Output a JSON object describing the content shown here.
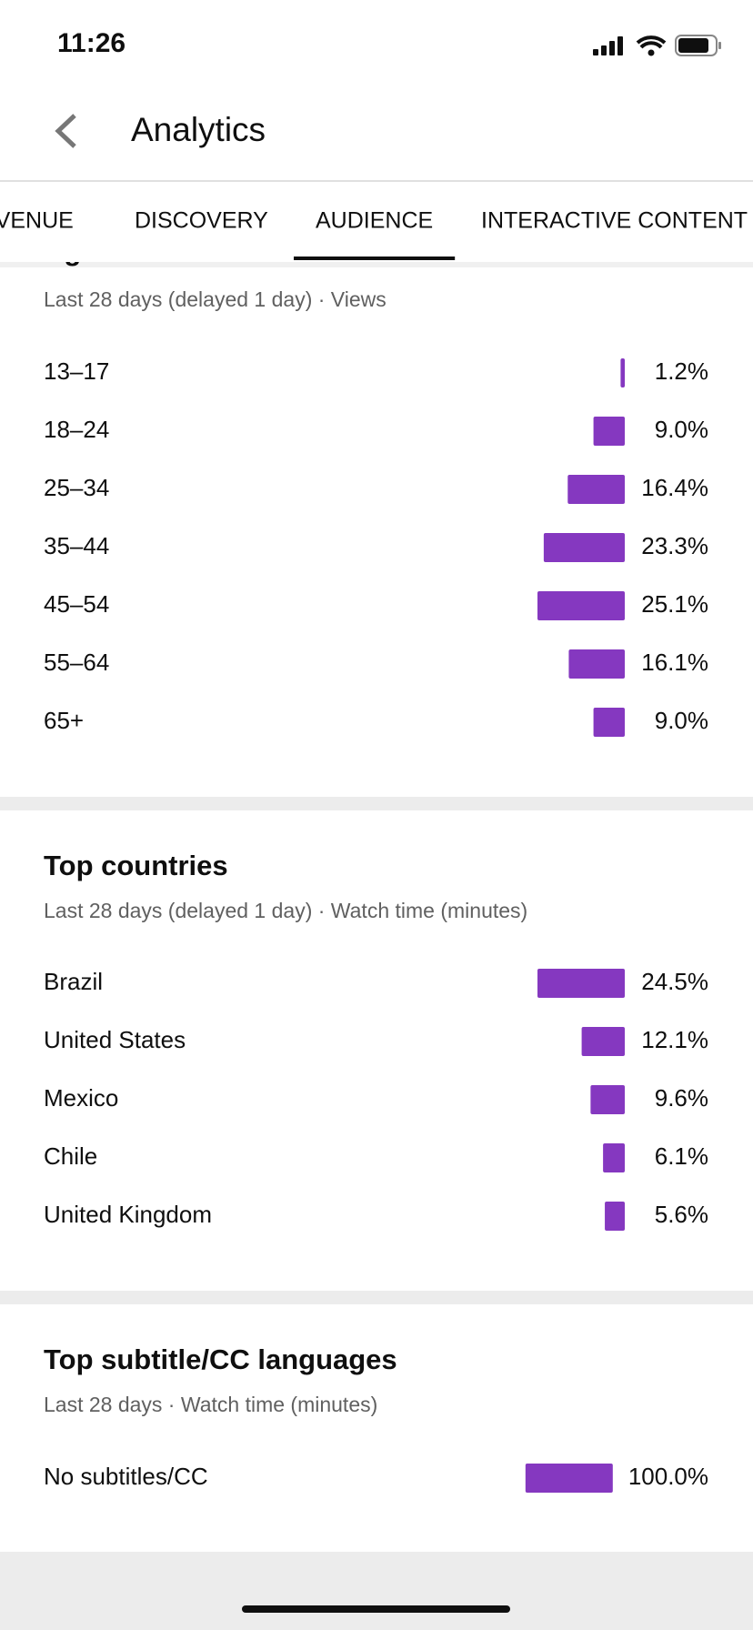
{
  "status_bar": {
    "time": "11:26"
  },
  "header": {
    "title": "Analytics"
  },
  "tabs": [
    "EVENUE",
    "DISCOVERY",
    "AUDIENCE",
    "INTERACTIVE CONTENT"
  ],
  "active_tab": 2,
  "sections": [
    {
      "title": "Age",
      "subtitle": "Last 28 days (delayed 1 day) · Views",
      "rows": [
        {
          "label": "13–17",
          "value": 1.2,
          "value_label": "1.2%"
        },
        {
          "label": "18–24",
          "value": 9.0,
          "value_label": "9.0%"
        },
        {
          "label": "25–34",
          "value": 16.4,
          "value_label": "16.4%"
        },
        {
          "label": "35–44",
          "value": 23.3,
          "value_label": "23.3%"
        },
        {
          "label": "45–54",
          "value": 25.1,
          "value_label": "25.1%"
        },
        {
          "label": "55–64",
          "value": 16.1,
          "value_label": "16.1%"
        },
        {
          "label": "65+",
          "value": 9.0,
          "value_label": "9.0%"
        }
      ]
    },
    {
      "title": "Top countries",
      "subtitle": "Last 28 days (delayed 1 day) · Watch time (minutes)",
      "rows": [
        {
          "label": "Brazil",
          "value": 24.5,
          "value_label": "24.5%"
        },
        {
          "label": "United States",
          "value": 12.1,
          "value_label": "12.1%"
        },
        {
          "label": "Mexico",
          "value": 9.6,
          "value_label": "9.6%"
        },
        {
          "label": "Chile",
          "value": 6.1,
          "value_label": "6.1%"
        },
        {
          "label": "United Kingdom",
          "value": 5.6,
          "value_label": "5.6%"
        }
      ]
    },
    {
      "title": "Top subtitle/CC languages",
      "subtitle": "Last 28 days · Watch time (minutes)",
      "rows": [
        {
          "label": "No subtitles/CC",
          "value": 100.0,
          "value_label": "100.0%"
        }
      ]
    }
  ]
}
